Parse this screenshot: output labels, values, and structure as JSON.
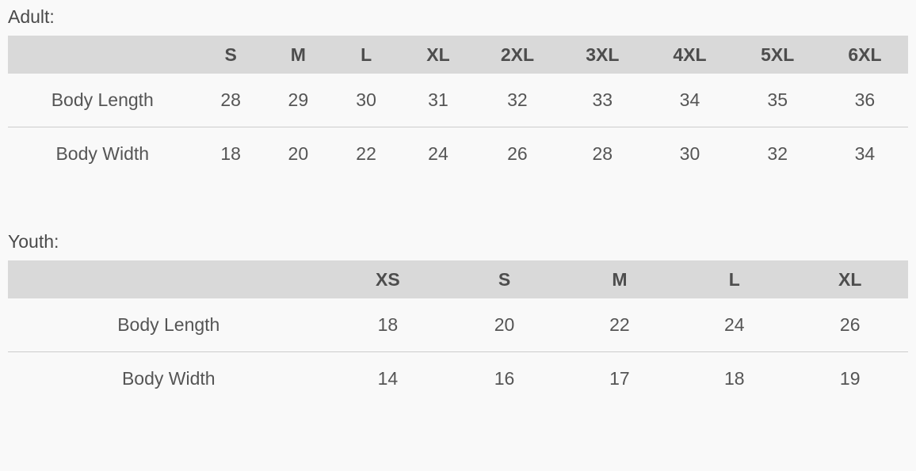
{
  "colors": {
    "page_bg": "#f9f9f9",
    "header_row_bg": "#d9d9d9",
    "header_text": "#4d4d4d",
    "heading_text": "#4a4a4a",
    "cell_text": "#555555",
    "divider": "#cccccc"
  },
  "sections": [
    {
      "id": "adult",
      "heading": "Adult:",
      "size_columns": [
        "S",
        "M",
        "L",
        "XL",
        "2XL",
        "3XL",
        "4XL",
        "5XL",
        "6XL"
      ],
      "rows": [
        {
          "label": "Body Length",
          "values": [
            "28",
            "29",
            "30",
            "31",
            "32",
            "33",
            "34",
            "35",
            "36"
          ]
        },
        {
          "label": "Body Width",
          "values": [
            "18",
            "20",
            "22",
            "24",
            "26",
            "28",
            "30",
            "32",
            "34"
          ]
        }
      ]
    },
    {
      "id": "youth",
      "heading": "Youth:",
      "size_columns": [
        "XS",
        "S",
        "M",
        "L",
        "XL"
      ],
      "rows": [
        {
          "label": "Body Length",
          "values": [
            "18",
            "20",
            "22",
            "24",
            "26"
          ]
        },
        {
          "label": "Body Width",
          "values": [
            "14",
            "16",
            "17",
            "18",
            "19"
          ]
        }
      ]
    }
  ]
}
